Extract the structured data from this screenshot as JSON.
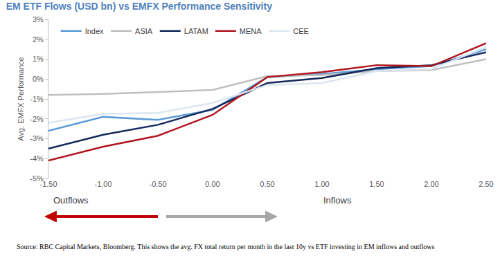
{
  "chart_data": {
    "type": "line",
    "title": "EM ETF Flows (USD bn) vs EMFX Performance Sensitivity",
    "y_label": "Avg. EMFX Performance",
    "categories": [
      "-1.50",
      "-1.00",
      "-0.50",
      "0.00",
      "0.50",
      "1.00",
      "1.50",
      "2.00",
      "2.50"
    ],
    "series": [
      {
        "name": "Index",
        "color": "#5B9BD5",
        "values": [
          -2.6,
          -1.9,
          -2.05,
          -1.55,
          0.1,
          0.25,
          0.5,
          0.65,
          1.5
        ]
      },
      {
        "name": "ASIA",
        "color": "#BFBFBF",
        "values": [
          -0.8,
          -0.75,
          -0.65,
          -0.55,
          0.15,
          0.2,
          0.4,
          0.45,
          1.0
        ]
      },
      {
        "name": "LATAM",
        "color": "#14285A",
        "values": [
          -3.5,
          -2.8,
          -2.3,
          -1.5,
          -0.2,
          0.05,
          0.55,
          0.7,
          1.35
        ]
      },
      {
        "name": "MENA",
        "color": "#B0161E",
        "values": [
          -4.1,
          -3.4,
          -2.85,
          -1.8,
          0.1,
          0.35,
          0.7,
          0.65,
          1.8
        ]
      },
      {
        "name": "CEE",
        "color": "#DCE6F0",
        "values": [
          -2.2,
          -1.75,
          -1.7,
          -1.2,
          -0.3,
          -0.2,
          0.4,
          0.5,
          1.6
        ]
      }
    ],
    "ylim": [
      -5,
      3
    ],
    "yticks": [
      {
        "value": -5,
        "label": "-5%"
      },
      {
        "value": -4,
        "label": "-4%"
      },
      {
        "value": -3,
        "label": "-3%"
      },
      {
        "value": -2,
        "label": "-2%"
      },
      {
        "value": -1,
        "label": "-1%"
      },
      {
        "value": 0,
        "label": "0%"
      },
      {
        "value": 1,
        "label": "1%"
      },
      {
        "value": 2,
        "label": "2%"
      },
      {
        "value": 3,
        "label": "3%"
      }
    ],
    "grid": false,
    "legend": "top",
    "annotations": [
      "Outflows",
      "Inflows"
    ],
    "source": "Source: RBC Capital Markets, Bloomberg. This shows the avg. FX total return per month in the last 10y vs ETF investing in EM inflows and outflows"
  }
}
